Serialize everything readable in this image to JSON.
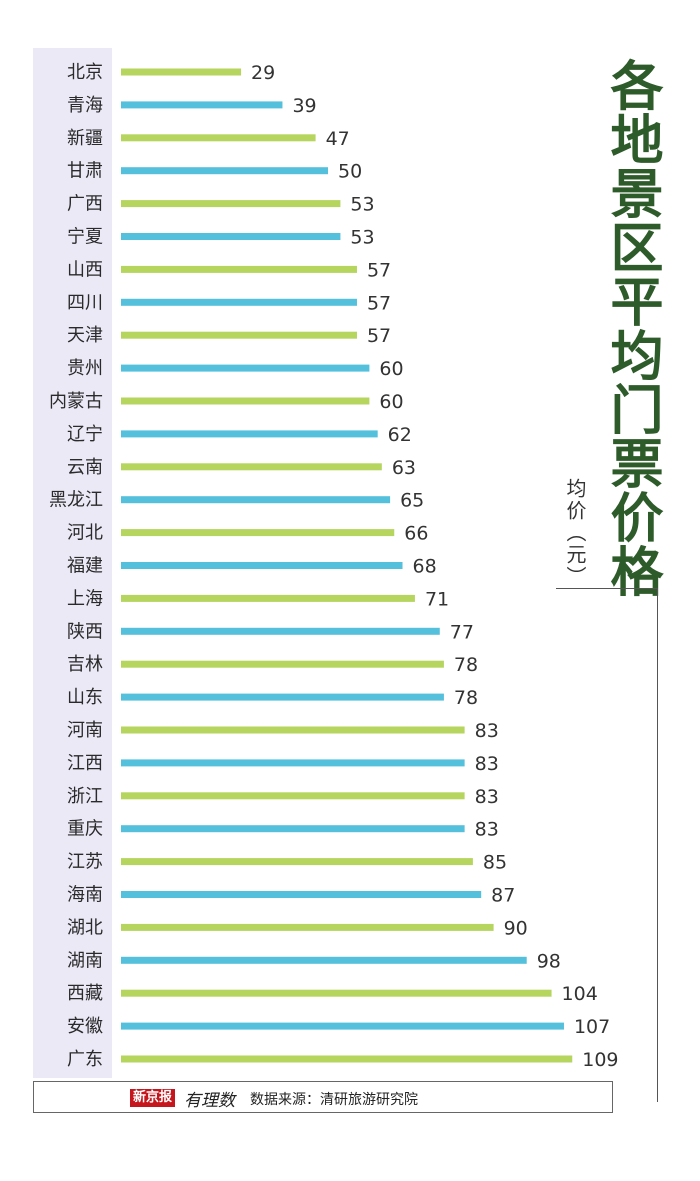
{
  "title": "各地景区平均门票价格",
  "unit_label": "均价（元）",
  "footer": {
    "brand": "新京报",
    "brand_sub": "有理数",
    "source": "数据来源：清研旅游研究院"
  },
  "colors": {
    "bar_green": "#b5d55f",
    "bar_blue": "#55c0dc",
    "title": "#2e5b2a",
    "label_strip": "#ece9f7"
  },
  "chart_data": {
    "type": "bar",
    "orientation": "horizontal",
    "title": "各地景区平均门票价格",
    "xlabel": "均价（元）",
    "ylabel": "",
    "categories": [
      "北京",
      "青海",
      "新疆",
      "甘肃",
      "广西",
      "宁夏",
      "山西",
      "四川",
      "天津",
      "贵州",
      "内蒙古",
      "辽宁",
      "云南",
      "黑龙江",
      "河北",
      "福建",
      "上海",
      "陕西",
      "吉林",
      "山东",
      "河南",
      "江西",
      "浙江",
      "重庆",
      "江苏",
      "海南",
      "湖北",
      "湖南",
      "西藏",
      "安徽",
      "广东"
    ],
    "values": [
      29,
      39,
      47,
      50,
      53,
      53,
      57,
      57,
      57,
      60,
      60,
      62,
      63,
      65,
      66,
      68,
      71,
      77,
      78,
      78,
      83,
      83,
      83,
      83,
      85,
      87,
      90,
      98,
      104,
      107,
      109
    ],
    "bar_colors": "alternating green and blue",
    "xlim": [
      0,
      109
    ],
    "grid": false,
    "legend": "none"
  }
}
